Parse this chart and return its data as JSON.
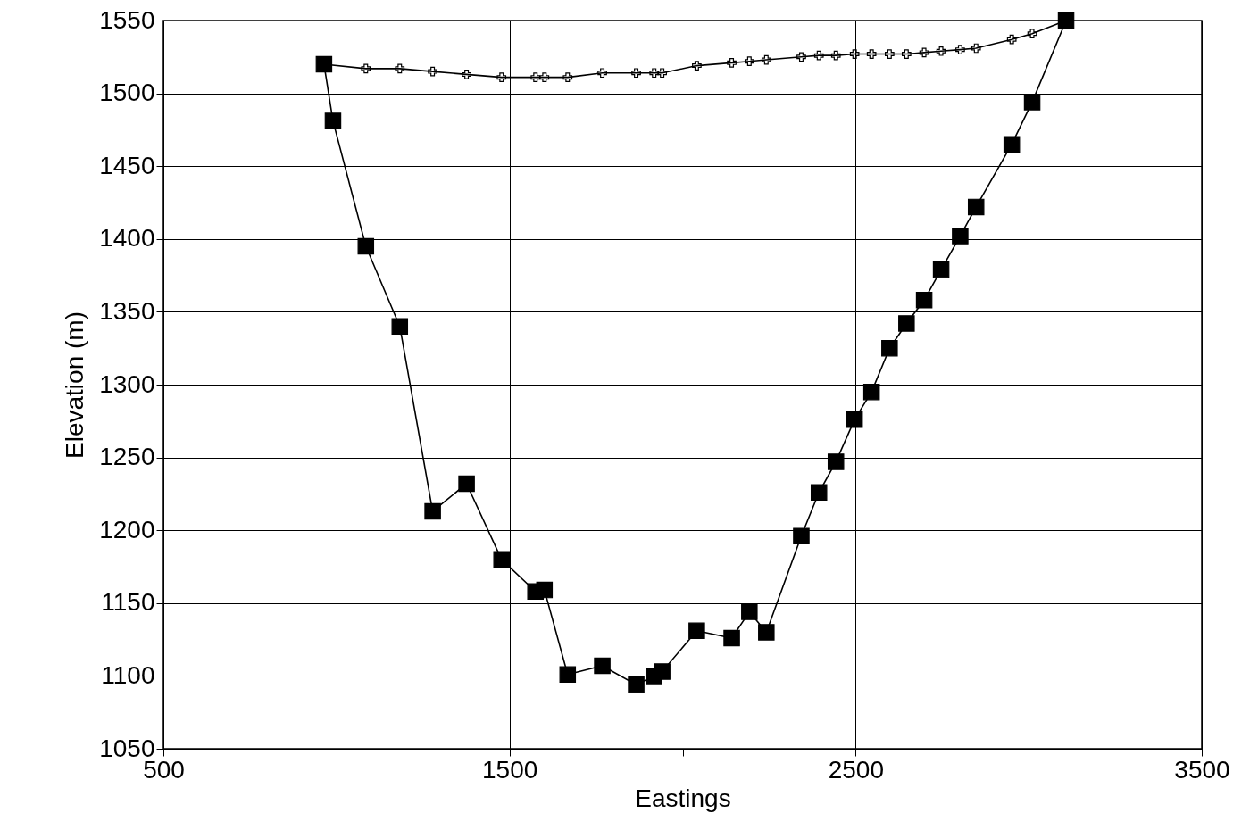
{
  "chart_data": {
    "type": "line",
    "xlabel": "Eastings",
    "ylabel": "Elevation (m)",
    "xlim": [
      500,
      3500
    ],
    "ylim": [
      1050,
      1550
    ],
    "xticks": [
      500,
      {
        "value": 1000,
        "label": null
      },
      1500,
      {
        "value": 2000,
        "label": null
      },
      2500,
      {
        "value": 3000,
        "label": null
      },
      3500
    ],
    "yticks": [
      1050,
      1100,
      1150,
      1200,
      1250,
      1300,
      1350,
      1400,
      1450,
      1500,
      1550
    ],
    "grid": true,
    "series": [
      {
        "color": "#000000",
        "marker": "square",
        "x": [
          964,
          990,
          1085,
          1183,
          1278,
          1376,
          1477,
          1575,
          1601,
          1668,
          1768,
          1866,
          1918,
          1941,
          2041,
          2142,
          2193,
          2242,
          2343,
          2394,
          2443,
          2497,
          2546,
          2598,
          2647,
          2698,
          2747,
          2802,
          2848,
          2951,
          3010,
          3108
        ],
        "values": [
          1520,
          1481,
          1395,
          1340,
          1213,
          1232,
          1180,
          1158,
          1159,
          1101,
          1107,
          1094,
          1100,
          1103,
          1131,
          1126,
          1144,
          1130,
          1196,
          1226,
          1247,
          1276,
          1295,
          1325,
          1342,
          1358,
          1379,
          1402,
          1422,
          1465,
          1494,
          1550
        ]
      },
      {
        "color": "#000000",
        "marker": "cross",
        "x": [
          964,
          1085,
          1183,
          1278,
          1376,
          1477,
          1575,
          1601,
          1668,
          1768,
          1866,
          1918,
          1941,
          2041,
          2142,
          2193,
          2242,
          2343,
          2394,
          2443,
          2497,
          2546,
          2598,
          2647,
          2698,
          2747,
          2802,
          2848,
          2951,
          3010,
          3108
        ],
        "values": [
          1520,
          1517,
          1517,
          1515,
          1513,
          1511,
          1511,
          1511,
          1511,
          1514,
          1514,
          1514,
          1514,
          1519,
          1521,
          1522,
          1523,
          1525,
          1526,
          1526,
          1527,
          1527,
          1527,
          1527,
          1528,
          1529,
          1530,
          1531,
          1537,
          1541,
          1550
        ]
      }
    ]
  }
}
